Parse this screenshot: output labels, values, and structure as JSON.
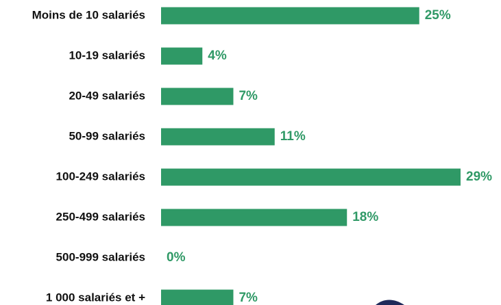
{
  "chart_data": {
    "type": "bar",
    "orientation": "horizontal",
    "categories": [
      "Moins de 10 salariés",
      "10-19 salariés",
      "20-49 salariés",
      "50-99 salariés",
      "100-249 salariés",
      "250-499 salariés",
      "500-999 salariés",
      "1 000 salariés et +"
    ],
    "values": [
      25,
      4,
      7,
      11,
      29,
      18,
      0,
      7
    ],
    "value_labels": [
      "25%",
      "4%",
      "7%",
      "11%",
      "29%",
      "18%",
      "0%",
      "7%"
    ],
    "color": "#2f9966"
  }
}
